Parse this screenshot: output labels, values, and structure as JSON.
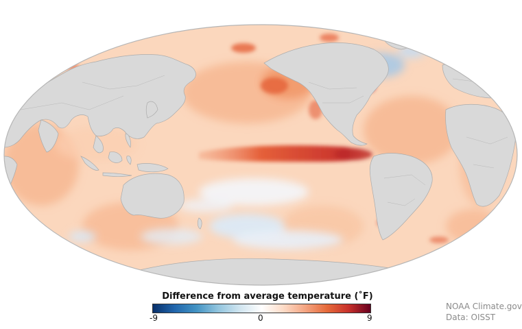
{
  "legend": {
    "title": "Difference from average temperature (˚F)",
    "min_label": "-9",
    "mid_label": "0",
    "max_label": "9",
    "colors": [
      "#08306b",
      "#2166ac",
      "#4393c3",
      "#92c5de",
      "#d1e5f0",
      "#ffffff",
      "#fddbc7",
      "#f4a582",
      "#e66a3a",
      "#c7302b",
      "#67001f"
    ]
  },
  "credits": {
    "line1": "NOAA Climate.gov",
    "line2": "Data: OISST"
  },
  "map_colors": {
    "land": "#d9d9d9",
    "land_border": "#aaaaaa",
    "outline": "#b5b5b5",
    "ocean_base": "#fbd7bd",
    "warm_light": "#f8c39f",
    "warm_mid": "#f29a6a",
    "warm_strong": "#e5603a",
    "hot": "#b8282b",
    "cool_light": "#deeaf5",
    "cool_mid": "#a9c9e6"
  }
}
